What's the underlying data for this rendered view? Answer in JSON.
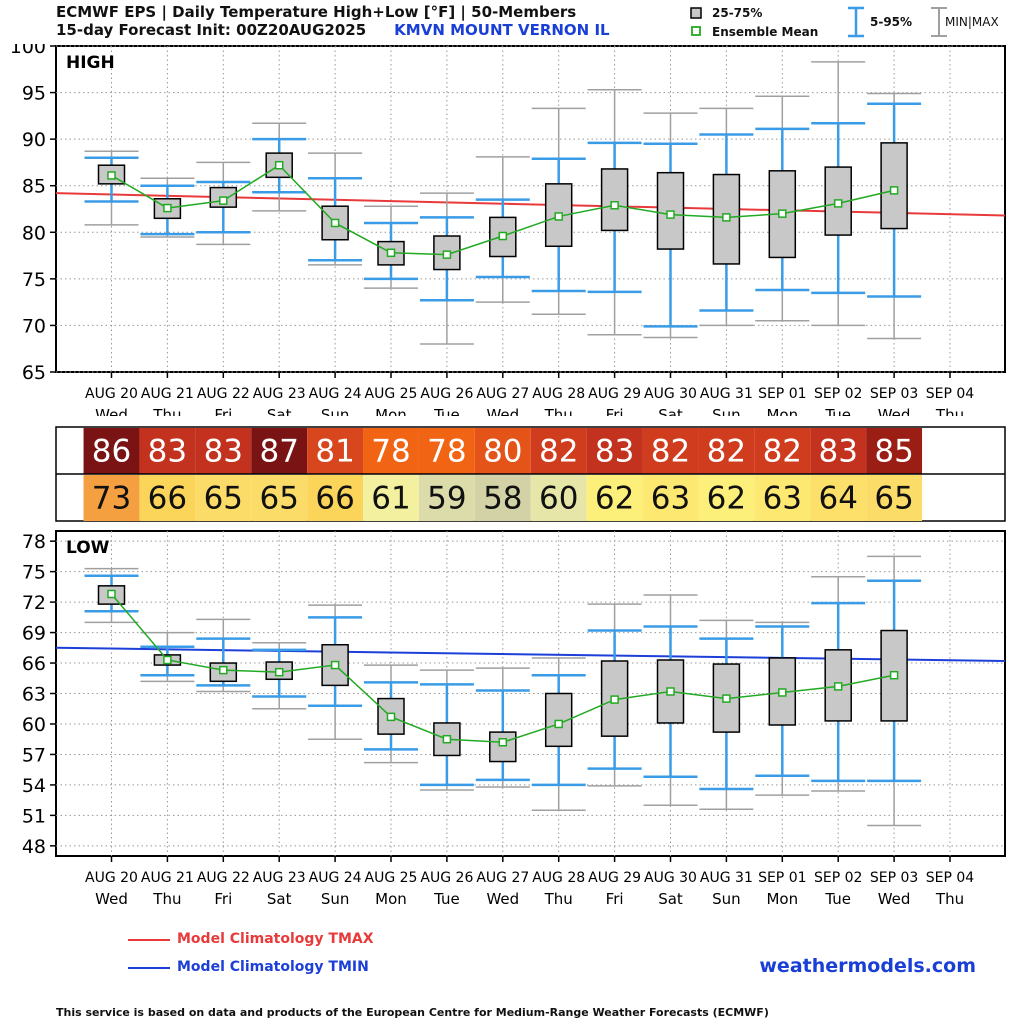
{
  "header": {
    "title": "ECMWF EPS | Daily Temperature High+Low [°F] | 50-Members",
    "subtitle": "15-day Forecast Init: 00Z20AUG2025",
    "station": "KMVN  MOUNT VERNON   IL"
  },
  "legend": {
    "box": "25-75%",
    "mean": "Ensemble Mean",
    "p5_95": "5-95%",
    "minmax": "MIN|MAX",
    "tmax": "Model Climatology TMAX",
    "tmin": "Model Climatology TMIN"
  },
  "colors": {
    "box_fill": "#c8c8c8",
    "whisker_5_95": "#3a9be6",
    "whisker_minmax": "#a0a0a0",
    "mean_line": "#22aa22",
    "clim_tmax": "#e83a3a",
    "clim_tmin": "#1c3fd8"
  },
  "site": "weathermodels.com",
  "footer": "This service is based on data and products of the European Centre for Medium-Range Weather Forecasts (ECMWF)",
  "dates": [
    "AUG 20",
    "AUG 21",
    "AUG 22",
    "AUG 23",
    "AUG 24",
    "AUG 25",
    "AUG 26",
    "AUG 27",
    "AUG 28",
    "AUG 29",
    "AUG 30",
    "AUG 31",
    "SEP 01",
    "SEP 02",
    "SEP 03",
    "SEP 04"
  ],
  "days": [
    "Wed",
    "Thu",
    "Fri",
    "Sat",
    "Sun",
    "Mon",
    "Tue",
    "Wed",
    "Thu",
    "Fri",
    "Sat",
    "Sun",
    "Mon",
    "Tue",
    "Wed",
    "Thu"
  ],
  "chart_data": [
    {
      "type": "box",
      "label": "HIGH",
      "ylim": [
        65,
        100
      ],
      "yticks": [
        65,
        70,
        75,
        80,
        85,
        90,
        95,
        100
      ],
      "grid": true,
      "min": [
        80.8,
        79.5,
        78.7,
        82.3,
        76.5,
        74.0,
        68.0,
        72.5,
        71.2,
        69.0,
        68.7,
        70.0,
        70.5,
        70.0,
        68.6
      ],
      "p5": [
        83.3,
        79.8,
        80.0,
        84.3,
        77.0,
        75.0,
        72.7,
        75.2,
        73.7,
        73.6,
        69.9,
        71.6,
        73.8,
        73.5,
        73.1
      ],
      "q25": [
        85.2,
        81.5,
        82.7,
        85.9,
        79.2,
        76.5,
        76.0,
        77.4,
        78.5,
        80.2,
        78.2,
        76.6,
        77.3,
        79.7,
        80.4
      ],
      "mean": [
        86.1,
        82.6,
        83.4,
        87.2,
        81.0,
        77.8,
        77.6,
        79.6,
        81.7,
        82.9,
        81.9,
        81.6,
        82.0,
        83.1,
        84.5
      ],
      "q75": [
        87.2,
        83.6,
        84.8,
        88.5,
        82.8,
        79.0,
        79.6,
        81.6,
        85.2,
        86.8,
        86.4,
        86.2,
        86.6,
        87.0,
        89.6
      ],
      "p95": [
        88.0,
        85.0,
        85.4,
        90.0,
        85.8,
        81.0,
        81.6,
        83.5,
        87.9,
        89.6,
        89.5,
        90.5,
        91.1,
        91.7,
        93.8
      ],
      "max": [
        88.7,
        85.8,
        87.5,
        91.7,
        88.5,
        82.8,
        84.2,
        88.1,
        93.3,
        95.3,
        92.8,
        93.3,
        94.6,
        98.3,
        94.9
      ],
      "clim_start": 84.2,
      "clim_end": 81.8
    },
    {
      "type": "box",
      "label": "LOW",
      "ylim": [
        47,
        79
      ],
      "yticks": [
        48,
        51,
        54,
        57,
        60,
        63,
        66,
        69,
        72,
        75,
        78
      ],
      "grid": true,
      "min": [
        70.0,
        64.2,
        63.2,
        61.5,
        58.5,
        56.2,
        53.5,
        53.8,
        51.5,
        53.9,
        52.0,
        51.6,
        53.0,
        53.4,
        50.0
      ],
      "p5": [
        71.1,
        64.8,
        63.8,
        62.7,
        61.8,
        57.5,
        54.0,
        54.5,
        54.0,
        55.6,
        54.8,
        53.6,
        54.9,
        54.4,
        54.4
      ],
      "q25": [
        71.8,
        65.8,
        64.2,
        64.4,
        63.8,
        59.0,
        56.9,
        56.3,
        57.8,
        58.8,
        60.1,
        59.2,
        59.9,
        60.3,
        60.3
      ],
      "mean": [
        72.8,
        66.3,
        65.3,
        65.1,
        65.8,
        60.7,
        58.5,
        58.2,
        60.0,
        62.4,
        63.2,
        62.5,
        63.1,
        63.7,
        64.8
      ],
      "q75": [
        73.6,
        66.8,
        66.0,
        66.1,
        67.8,
        62.5,
        60.1,
        59.2,
        63.0,
        66.2,
        66.3,
        65.9,
        66.5,
        67.3,
        69.2
      ],
      "p95": [
        74.6,
        67.6,
        68.4,
        67.3,
        70.5,
        64.1,
        63.9,
        63.3,
        64.8,
        69.2,
        69.6,
        68.4,
        69.6,
        71.9,
        74.1
      ],
      "max": [
        75.3,
        69.0,
        70.3,
        68.0,
        71.7,
        65.8,
        65.3,
        65.5,
        66.5,
        71.8,
        72.7,
        70.2,
        70.0,
        74.5,
        76.5
      ],
      "clim_start": 67.5,
      "clim_end": 66.2
    }
  ],
  "table": {
    "high_values": [
      86,
      83,
      83,
      87,
      81,
      78,
      78,
      80,
      82,
      83,
      82,
      82,
      82,
      83,
      85
    ],
    "low_values": [
      73,
      66,
      65,
      65,
      66,
      61,
      59,
      58,
      60,
      62,
      63,
      62,
      63,
      64,
      65
    ],
    "high_colors": [
      "#7a1414",
      "#c2321e",
      "#c2321e",
      "#7a1414",
      "#d8461e",
      "#f06414",
      "#f06414",
      "#e45418",
      "#d03c1e",
      "#c2321e",
      "#d03c1e",
      "#d03c1e",
      "#d03c1e",
      "#c2321e",
      "#9a1e14"
    ],
    "low_colors": [
      "#f5a040",
      "#fbd45a",
      "#fcdc68",
      "#fcdc68",
      "#fbd45a",
      "#f3f0a0",
      "#dcdcaa",
      "#d2d2a6",
      "#e6e6a8",
      "#fdf07a",
      "#fde872",
      "#fdf07a",
      "#fde872",
      "#fce06a",
      "#fcdc68"
    ]
  }
}
